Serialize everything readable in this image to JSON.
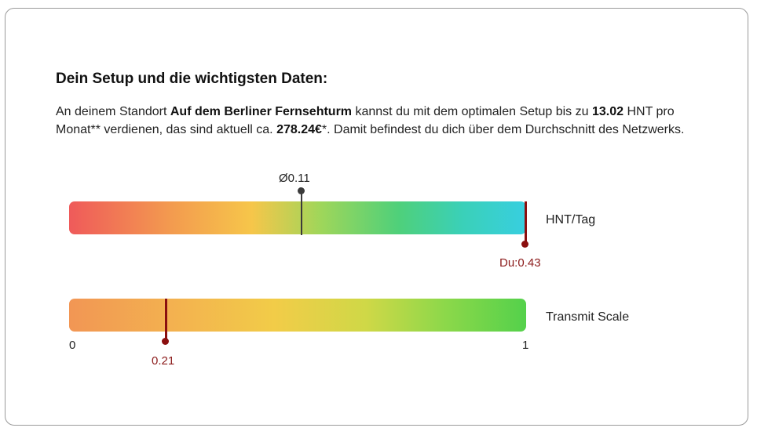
{
  "section": {
    "title": "Dein Setup und die wichtigsten Daten:",
    "desc": {
      "p1": "An deinem Standort ",
      "location": "Auf dem Berliner Fernsehturm",
      "p2": " kannst du mit dem optimalen Setup bis zu ",
      "hnt_month": "13.02",
      "p3": " HNT pro Monat** verdienen, das sind aktuell ca. ",
      "eur": "278.24€",
      "p4": "*. Damit befindest du dich über dem Durchschnitt des Netzwerks."
    }
  },
  "hnt_scale": {
    "label": "HNT/Tag",
    "average_label": "Ø0.11",
    "average_value": 0.11,
    "you_label": "Du:0.43",
    "you_value": 0.43
  },
  "transmit_scale": {
    "label": "Transmit Scale",
    "min_label": "0",
    "max_label": "1",
    "value_label": "0.21",
    "value": 0.21
  },
  "colors": {
    "marker_you": "#8b0f0f",
    "marker_average": "#3b3b3b"
  }
}
